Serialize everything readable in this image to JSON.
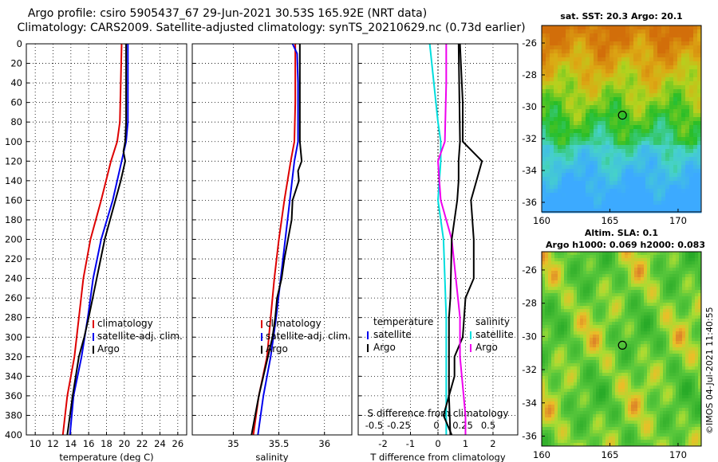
{
  "title": {
    "line1": "Argo profile: csiro 5905437_67 29-Jun-2021 30.53S 165.92E (NRT data)",
    "line2": "Climatology: CARS2009. Satellite-adjusted climatology: synTS_20210629.nc (0.73d earlier)"
  },
  "colors": {
    "climatology": "#dd0000",
    "satellite": "#0000ee",
    "argo": "#000000",
    "t_diff": "#00dddd",
    "s_diff": "#ee00ee"
  },
  "footer": "©IMOS 04-Jul-2021 11:40:55",
  "chart_data": [
    {
      "type": "line",
      "name": "temperature",
      "xlabel": "temperature (deg C)",
      "ylabel": "depth",
      "xlim": [
        9,
        27
      ],
      "ylim": [
        400,
        0
      ],
      "xticks": [
        "10",
        "12",
        "14",
        "16",
        "18",
        "20",
        "22",
        "24",
        "26"
      ],
      "xtick_values": [
        10,
        12,
        14,
        16,
        18,
        20,
        22,
        24,
        26
      ],
      "yticks": [
        "0",
        "20",
        "40",
        "60",
        "80",
        "100",
        "120",
        "140",
        "160",
        "180",
        "200",
        "220",
        "240",
        "260",
        "280",
        "300",
        "320",
        "340",
        "360",
        "380",
        "400"
      ],
      "grid": true,
      "legend": [
        "climatology",
        "satellite-adj. clim.",
        "Argo"
      ],
      "series": [
        {
          "name": "climatology",
          "depth": [
            0,
            40,
            80,
            100,
            120,
            160,
            200,
            240,
            280,
            320,
            360,
            400
          ],
          "values": [
            19.7,
            19.6,
            19.5,
            19.2,
            18.5,
            17.4,
            16.2,
            15.4,
            14.9,
            14.4,
            13.6,
            13.1
          ]
        },
        {
          "name": "satellite-adj. clim.",
          "depth": [
            0,
            40,
            80,
            100,
            120,
            160,
            200,
            240,
            280,
            320,
            360,
            400
          ],
          "values": [
            20.4,
            20.4,
            20.4,
            20.2,
            19.7,
            18.7,
            17.4,
            16.5,
            15.9,
            15.2,
            14.3,
            13.9
          ]
        },
        {
          "name": "Argo",
          "depth": [
            0,
            40,
            80,
            100,
            110,
            120,
            140,
            160,
            200,
            240,
            280,
            300,
            320,
            360,
            400
          ],
          "values": [
            20.2,
            20.2,
            20.2,
            20.1,
            19.9,
            20.1,
            19.6,
            19.0,
            17.8,
            16.9,
            16.0,
            15.5,
            14.9,
            14.2,
            13.6
          ]
        }
      ]
    },
    {
      "type": "line",
      "name": "salinity",
      "xlabel": "salinity",
      "ylabel": "depth",
      "xlim": [
        34.55,
        36.3
      ],
      "ylim": [
        400,
        0
      ],
      "xticks": [
        "35",
        "35.5",
        "36"
      ],
      "xtick_values": [
        35,
        35.5,
        36
      ],
      "grid": true,
      "legend": [
        "climatology",
        "satellite-adj. clim.",
        "Argo"
      ],
      "series": [
        {
          "name": "climatology",
          "depth": [
            0,
            60,
            100,
            120,
            160,
            200,
            240,
            280,
            320,
            360,
            400
          ],
          "values": [
            35.68,
            35.68,
            35.67,
            35.63,
            35.56,
            35.5,
            35.45,
            35.41,
            35.37,
            35.28,
            35.22
          ]
        },
        {
          "name": "satellite-adj. clim.",
          "depth": [
            0,
            10,
            40,
            100,
            120,
            160,
            200,
            240,
            280,
            320,
            360,
            400
          ],
          "values": [
            35.65,
            35.7,
            35.71,
            35.71,
            35.67,
            35.62,
            35.57,
            35.52,
            35.47,
            35.41,
            35.33,
            35.27
          ]
        },
        {
          "name": "Argo",
          "depth": [
            0,
            100,
            120,
            130,
            140,
            160,
            180,
            200,
            220,
            240,
            260,
            280,
            300,
            320,
            340,
            360,
            380,
            400
          ],
          "values": [
            35.73,
            35.73,
            35.75,
            35.71,
            35.72,
            35.65,
            35.64,
            35.6,
            35.56,
            35.53,
            35.48,
            35.46,
            35.43,
            35.38,
            35.33,
            35.28,
            35.24,
            35.2
          ]
        }
      ]
    },
    {
      "type": "line",
      "name": "differences",
      "xlabel": "T difference from climatology",
      "xlabel_top": "S difference from climatology",
      "ylabel": "depth",
      "xlim": [
        -2.9,
        2.9
      ],
      "ylim": [
        400,
        0
      ],
      "xticks": [
        "-2",
        "-1",
        "0",
        "1",
        "2"
      ],
      "xtick_values": [
        -2,
        -1,
        0,
        1,
        2
      ],
      "xticks_top": [
        "-0.5",
        "-0.25",
        "0",
        "0.25",
        "0.5"
      ],
      "xtick_values_top": [
        -0.5,
        -0.25,
        0,
        0.25,
        0.5
      ],
      "grid": true,
      "legend_left_title": "temperature",
      "legend_right_title": "salinity",
      "legend_left": [
        "satellite",
        "Argo"
      ],
      "legend_right": [
        "satellite",
        "Argo"
      ],
      "series": [
        {
          "name": "T satellite",
          "depth": [
            0,
            80,
            100,
            120,
            160,
            200,
            280,
            400
          ],
          "values": [
            -0.3,
            0.0,
            0.1,
            0.1,
            0.0,
            0.2,
            0.3,
            0.3
          ]
        },
        {
          "name": "T Argo",
          "depth": [
            0,
            60,
            100,
            120,
            140,
            160,
            200,
            240,
            260,
            300,
            320,
            340,
            380,
            400
          ],
          "values": [
            0.8,
            0.9,
            0.9,
            1.6,
            1.4,
            1.2,
            1.3,
            1.3,
            1.0,
            0.9,
            0.6,
            0.6,
            0.2,
            0.5
          ]
        },
        {
          "name": "S satellite",
          "depth": [
            0,
            40,
            100,
            120,
            160,
            200,
            280,
            320,
            380,
            400
          ],
          "values": [
            0.3,
            0.3,
            0.25,
            0.0,
            0.1,
            0.5,
            0.8,
            0.8,
            1.0,
            1.0
          ]
        },
        {
          "name": "S Argo",
          "depth": [
            0,
            100,
            120,
            140,
            160,
            200,
            260,
            280,
            300,
            320,
            360,
            400
          ],
          "values": [
            0.75,
            0.8,
            0.75,
            0.75,
            0.7,
            0.5,
            0.45,
            0.4,
            0.4,
            0.4,
            0.4,
            0.45
          ]
        }
      ]
    },
    {
      "type": "heatmap",
      "name": "sst_map",
      "title": "sat. SST: 20.3 Argo: 20.1",
      "xticks": [
        "160",
        "165",
        "170"
      ],
      "xtick_values": [
        160,
        165,
        170
      ],
      "yticks": [
        "-26",
        "-28",
        "-30",
        "-32",
        "-34",
        "-36"
      ],
      "ytick_values": [
        -26,
        -28,
        -30,
        -32,
        -34,
        -36
      ],
      "xlim": [
        160,
        171.7
      ],
      "ylim": [
        -36.6,
        -24.9
      ],
      "marker": {
        "lon": 165.92,
        "lat": -30.53
      }
    },
    {
      "type": "heatmap",
      "name": "sla_map",
      "title": "Altim. SLA: 0.1",
      "subtitle": "Argo h1000: 0.069 h2000: 0.083",
      "xticks": [
        "160",
        "165",
        "170"
      ],
      "xtick_values": [
        160,
        165,
        170
      ],
      "yticks": [
        "-26",
        "-28",
        "-30",
        "-32",
        "-34",
        "-36"
      ],
      "ytick_values": [
        -26,
        -28,
        -30,
        -32,
        -34,
        -36
      ],
      "xlim": [
        160,
        171.7
      ],
      "ylim": [
        -36.6,
        -24.9
      ],
      "marker": {
        "lon": 165.92,
        "lat": -30.53
      }
    }
  ]
}
